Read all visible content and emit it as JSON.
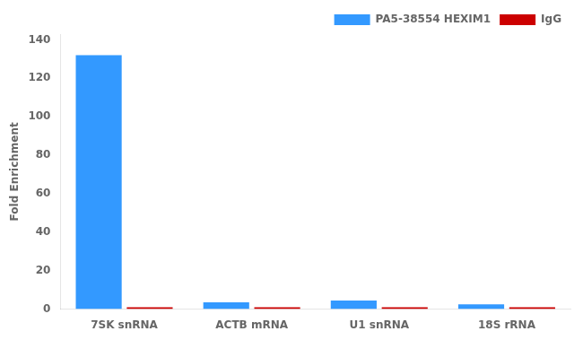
{
  "chart_data": {
    "type": "bar",
    "categories": [
      "7SK snRNA",
      "ACTB mRNA",
      "U1 snRNA",
      "18S rRNA"
    ],
    "series": [
      {
        "name": "PA5-38554 HEXIM1",
        "color": "#3399FF",
        "values": [
          132,
          3.5,
          4.5,
          2.5
        ]
      },
      {
        "name": "IgG",
        "color": "#CC0000",
        "values": [
          1.0,
          1.0,
          1.0,
          1.0
        ]
      }
    ],
    "ylabel": "Fold Enrichment",
    "ylim": [
      0,
      143
    ],
    "yticks": [
      0,
      20,
      40,
      60,
      80,
      100,
      120,
      140
    ],
    "grid": false,
    "legend": "upper right"
  }
}
